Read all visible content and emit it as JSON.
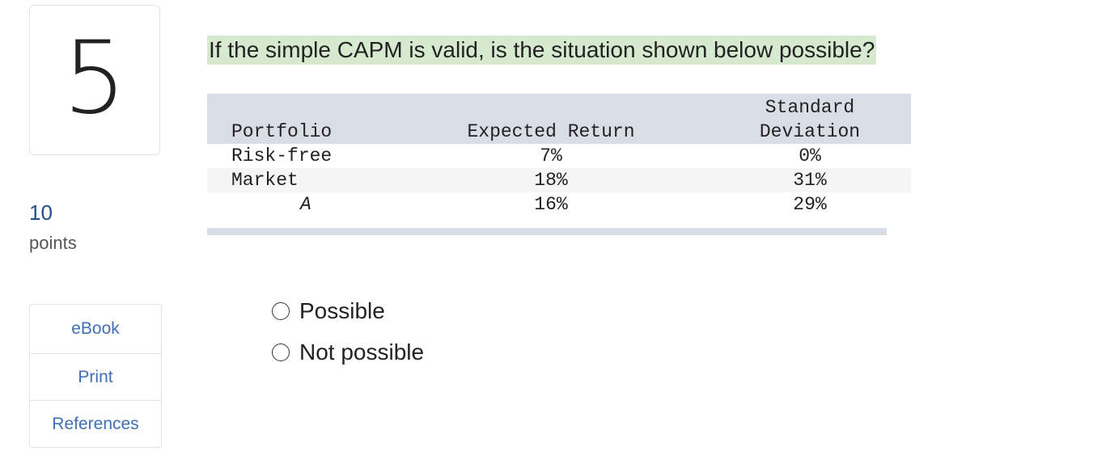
{
  "question_number": "5",
  "points": {
    "value": "10",
    "label": "points"
  },
  "tools": [
    {
      "label": "eBook"
    },
    {
      "label": "Print"
    },
    {
      "label": "References"
    }
  ],
  "question_text": "If the simple CAPM is valid, is the situation shown below possible?",
  "table": {
    "headers": {
      "portfolio": "Portfolio",
      "expected_return": "Expected Return",
      "sd_line1": "Standard",
      "sd_line2": "Deviation"
    },
    "rows": [
      {
        "portfolio": "Risk-free",
        "expected_return": "7%",
        "sd": "0%"
      },
      {
        "portfolio": "Market",
        "expected_return": "18%",
        "sd": "31%"
      },
      {
        "portfolio": "A",
        "expected_return": "16%",
        "sd": "29%"
      }
    ]
  },
  "choices": [
    {
      "label": "Possible",
      "selected": false
    },
    {
      "label": "Not possible",
      "selected": false
    }
  ],
  "colors": {
    "highlight": "#d6ead0",
    "table_header": "#d9dde6",
    "link": "#3f6fb5",
    "points": "#1f4e8c"
  }
}
